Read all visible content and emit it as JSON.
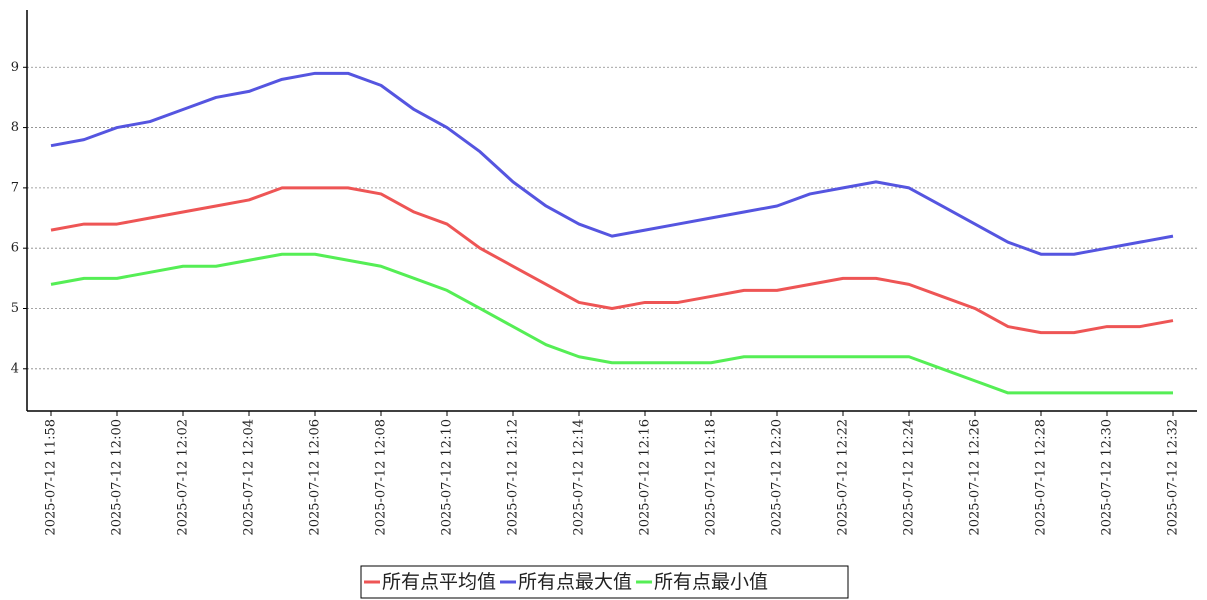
{
  "chart_data": {
    "type": "line",
    "categories": [
      "2025-07-12 11:58",
      null,
      "2025-07-12 12:00",
      null,
      "2025-07-12 12:02",
      null,
      "2025-07-12 12:04",
      null,
      "2025-07-12 12:06",
      null,
      "2025-07-12 12:08",
      null,
      "2025-07-12 12:10",
      null,
      "2025-07-12 12:12",
      null,
      "2025-07-12 12:14",
      null,
      "2025-07-12 12:16",
      null,
      "2025-07-12 12:18",
      null,
      "2025-07-12 12:20",
      null,
      "2025-07-12 12:22",
      null,
      "2025-07-12 12:24",
      null,
      "2025-07-12 12:26",
      null,
      "2025-07-12 12:28",
      null,
      "2025-07-12 12:30",
      null,
      "2025-07-12 12:32"
    ],
    "series": [
      {
        "name": "所有点平均值",
        "color": "#ee5555",
        "values": [
          6.3,
          6.4,
          6.4,
          6.5,
          6.6,
          6.7,
          6.8,
          7.0,
          7.0,
          7.0,
          6.9,
          6.6,
          6.4,
          6.0,
          5.7,
          5.4,
          5.1,
          5.0,
          5.1,
          5.1,
          5.2,
          5.3,
          5.3,
          5.4,
          5.5,
          5.5,
          5.4,
          5.2,
          5.0,
          4.7,
          4.6,
          4.6,
          4.7,
          4.7,
          4.8
        ]
      },
      {
        "name": "所有点最大值",
        "color": "#5555e0",
        "values": [
          7.7,
          7.8,
          8.0,
          8.1,
          8.3,
          8.5,
          8.6,
          8.8,
          8.9,
          8.9,
          8.7,
          8.3,
          8.0,
          7.6,
          7.1,
          6.7,
          6.4,
          6.2,
          6.3,
          6.4,
          6.5,
          6.6,
          6.7,
          6.9,
          7.0,
          7.1,
          7.0,
          6.7,
          6.4,
          6.1,
          5.9,
          5.9,
          6.0,
          6.1,
          6.2
        ]
      },
      {
        "name": "所有点最小值",
        "color": "#55ee55",
        "values": [
          5.4,
          5.5,
          5.5,
          5.6,
          5.7,
          5.7,
          5.8,
          5.9,
          5.9,
          5.8,
          5.7,
          5.5,
          5.3,
          5.0,
          4.7,
          4.4,
          4.2,
          4.1,
          4.1,
          4.1,
          4.1,
          4.2,
          4.2,
          4.2,
          4.2,
          4.2,
          4.2,
          4.0,
          3.8,
          3.6,
          3.6,
          3.6,
          3.6,
          3.6,
          3.6
        ]
      }
    ],
    "ylim": [
      3.3,
      9.95
    ],
    "yticks": [
      4,
      5,
      6,
      7,
      8,
      9
    ],
    "grid": true
  }
}
